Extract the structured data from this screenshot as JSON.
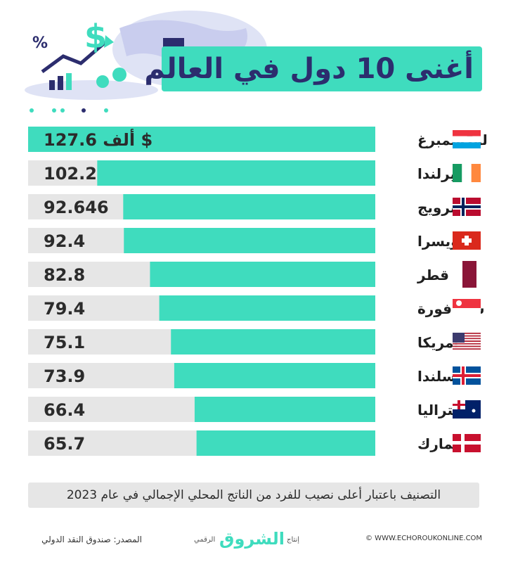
{
  "title": "أغنى 10 دول في العالم",
  "colors": {
    "accent": "#3fdcbe",
    "bar_bg": "#e6e6e6",
    "title_text": "#2c2d6e",
    "value_text": "#2b2b2b"
  },
  "chart_data": {
    "type": "bar",
    "orientation": "horizontal",
    "categories": [
      "لوكسمبرغ",
      "إيرلندا",
      "النرويج",
      "سويسرا",
      "قطر",
      "سنغافورة",
      "أمريكا",
      "آيسلندا",
      "أستراليا",
      "الدانمارك"
    ],
    "values": [
      127.6,
      102.2,
      92.646,
      92.4,
      82.8,
      79.4,
      75.1,
      73.9,
      66.4,
      65.7
    ],
    "value_labels": [
      "127.6 ألف $",
      "102.2",
      "92.646",
      "92.4",
      "82.8",
      "79.4",
      "75.1",
      "73.9",
      "66.4",
      "65.7"
    ],
    "flags": [
      "luxembourg-flag",
      "ireland-flag",
      "norway-flag",
      "switzerland-flag",
      "qatar-flag",
      "singapore-flag",
      "usa-flag",
      "iceland-flag",
      "australia-flag",
      "denmark-flag"
    ]
  },
  "footer": {
    "note": "التصنيف باعتبار أعلى نصيب للفرد من الناتج المحلي الإجمالي في عام 2023",
    "source": "المصدر: صندوق النقد الدولي",
    "brand_prefix": "إنتاج",
    "brand_name": "الشروق",
    "brand_suffix": "الرقمي",
    "website": "© WWW.ECHOROUKONLINE.COM"
  }
}
